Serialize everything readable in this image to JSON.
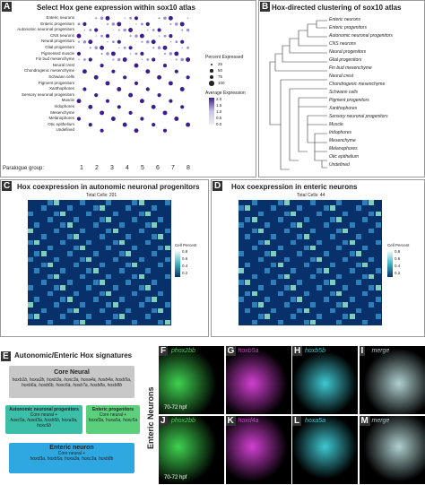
{
  "panel_a": {
    "label": "A",
    "title": "Select Hox gene expression within sox10 atlas",
    "rows": [
      "Enteric neurons",
      "Enteric progenitors",
      "Autonomic neuronal progenitors",
      "CNS neurons",
      "Neural progenitors",
      "Glial progenitors",
      "Pigmented muscle",
      "Fin bud mesenchyme",
      "Neural crest",
      "Chondrogenic mesenchyme",
      "Schwann cells",
      "Pigment progenitors",
      "Xanthophores",
      "Sensory neuronal progenitors",
      "Muscle",
      "Iridophores",
      "Mesenchyme",
      "Melanophores",
      "Otic epithelium",
      "Undefined"
    ],
    "paralogue_label": "Paralogue group:",
    "groups": [
      "1",
      "2",
      "3",
      "4",
      "5",
      "6",
      "7",
      "8"
    ],
    "size_title": "Percent Expressed",
    "sizes": [
      "25",
      "50",
      "75",
      "100"
    ],
    "color_title": "Average Expression",
    "color_ticks": [
      "2.0",
      "1.5",
      "1.0",
      "0.5",
      "0.0"
    ]
  },
  "panel_b": {
    "label": "B",
    "title": "Hox-directed clustering of sox10 atlas",
    "leaves": [
      "Enteric neurons",
      "Enteric progenitors",
      "Autonomic neuronal progenitors",
      "CNS neurons",
      "Neural progenitors",
      "Glial progenitors",
      "Fin bud mesenchyme",
      "Neural crest",
      "Chondrogenic mesenchyme",
      "Schwann cells",
      "Pigment progenitors",
      "Xanthophores",
      "Sensory neuronal progenitors",
      "Muscle",
      "Iridophores",
      "Mesenchyme",
      "Melanophores",
      "Otic epithelium",
      "Undefined"
    ]
  },
  "panel_c": {
    "label": "C",
    "title": "Hox coexpression in autonomic neuronal progenitors",
    "total": "Total Cells: 201",
    "legend_title": "Cell Percent",
    "legend_ticks": [
      "0.8",
      "0.6",
      "0.4",
      "0.2"
    ]
  },
  "panel_d": {
    "label": "D",
    "title": "Hox coexpression in enteric neurons",
    "total": "Total Cells: 44",
    "legend_title": "Cell Percent",
    "legend_ticks": [
      "0.8",
      "0.6",
      "0.4",
      "0.2"
    ]
  },
  "panel_e": {
    "label": "E",
    "title": "Autonomic/Enteric Hox signatures",
    "core_title": "Core Neural",
    "core_genes": "hoxb1b, hoxa2b, hoxb3a, hoxc3a, hoxa4a, hoxb4a, hoxb5a, hoxb6a, hoxb6b, hoxc6a, hoxb7a, hoxb8a, hoxb8b",
    "anp_title": "Autonomic neuronal progenitors",
    "anp_sub": "Core neural +",
    "anp_genes": "hoxc5a, hoxd3a, hoxb5b, hoxa9a, hoxc6b",
    "ep_title": "Enteric progenitors",
    "ep_sub": "Core neural +",
    "ep_genes": "hoxd3a, hoxa5a, hoxc5a",
    "en_title": "Enteric neuron",
    "en_sub": "Core neural +",
    "en_genes": "hoxd3a, hoxb5a, hoxa3a, hoxc3a, hoxb8b"
  },
  "panel_f": {
    "side": "Enteric Neurons",
    "time_1": "70-72 hpf",
    "time_2": "70-72 hpf",
    "images": [
      {
        "label": "F",
        "gene": "phox2bb"
      },
      {
        "label": "G",
        "gene": "hoxb5a"
      },
      {
        "label": "H",
        "gene": "hoxb5b"
      },
      {
        "label": "I",
        "gene": "merge"
      },
      {
        "label": "J",
        "gene": "phox2bb"
      },
      {
        "label": "K",
        "gene": "hoxd4a"
      },
      {
        "label": "L",
        "gene": "hoxa5a"
      },
      {
        "label": "M",
        "gene": "merge"
      }
    ]
  }
}
